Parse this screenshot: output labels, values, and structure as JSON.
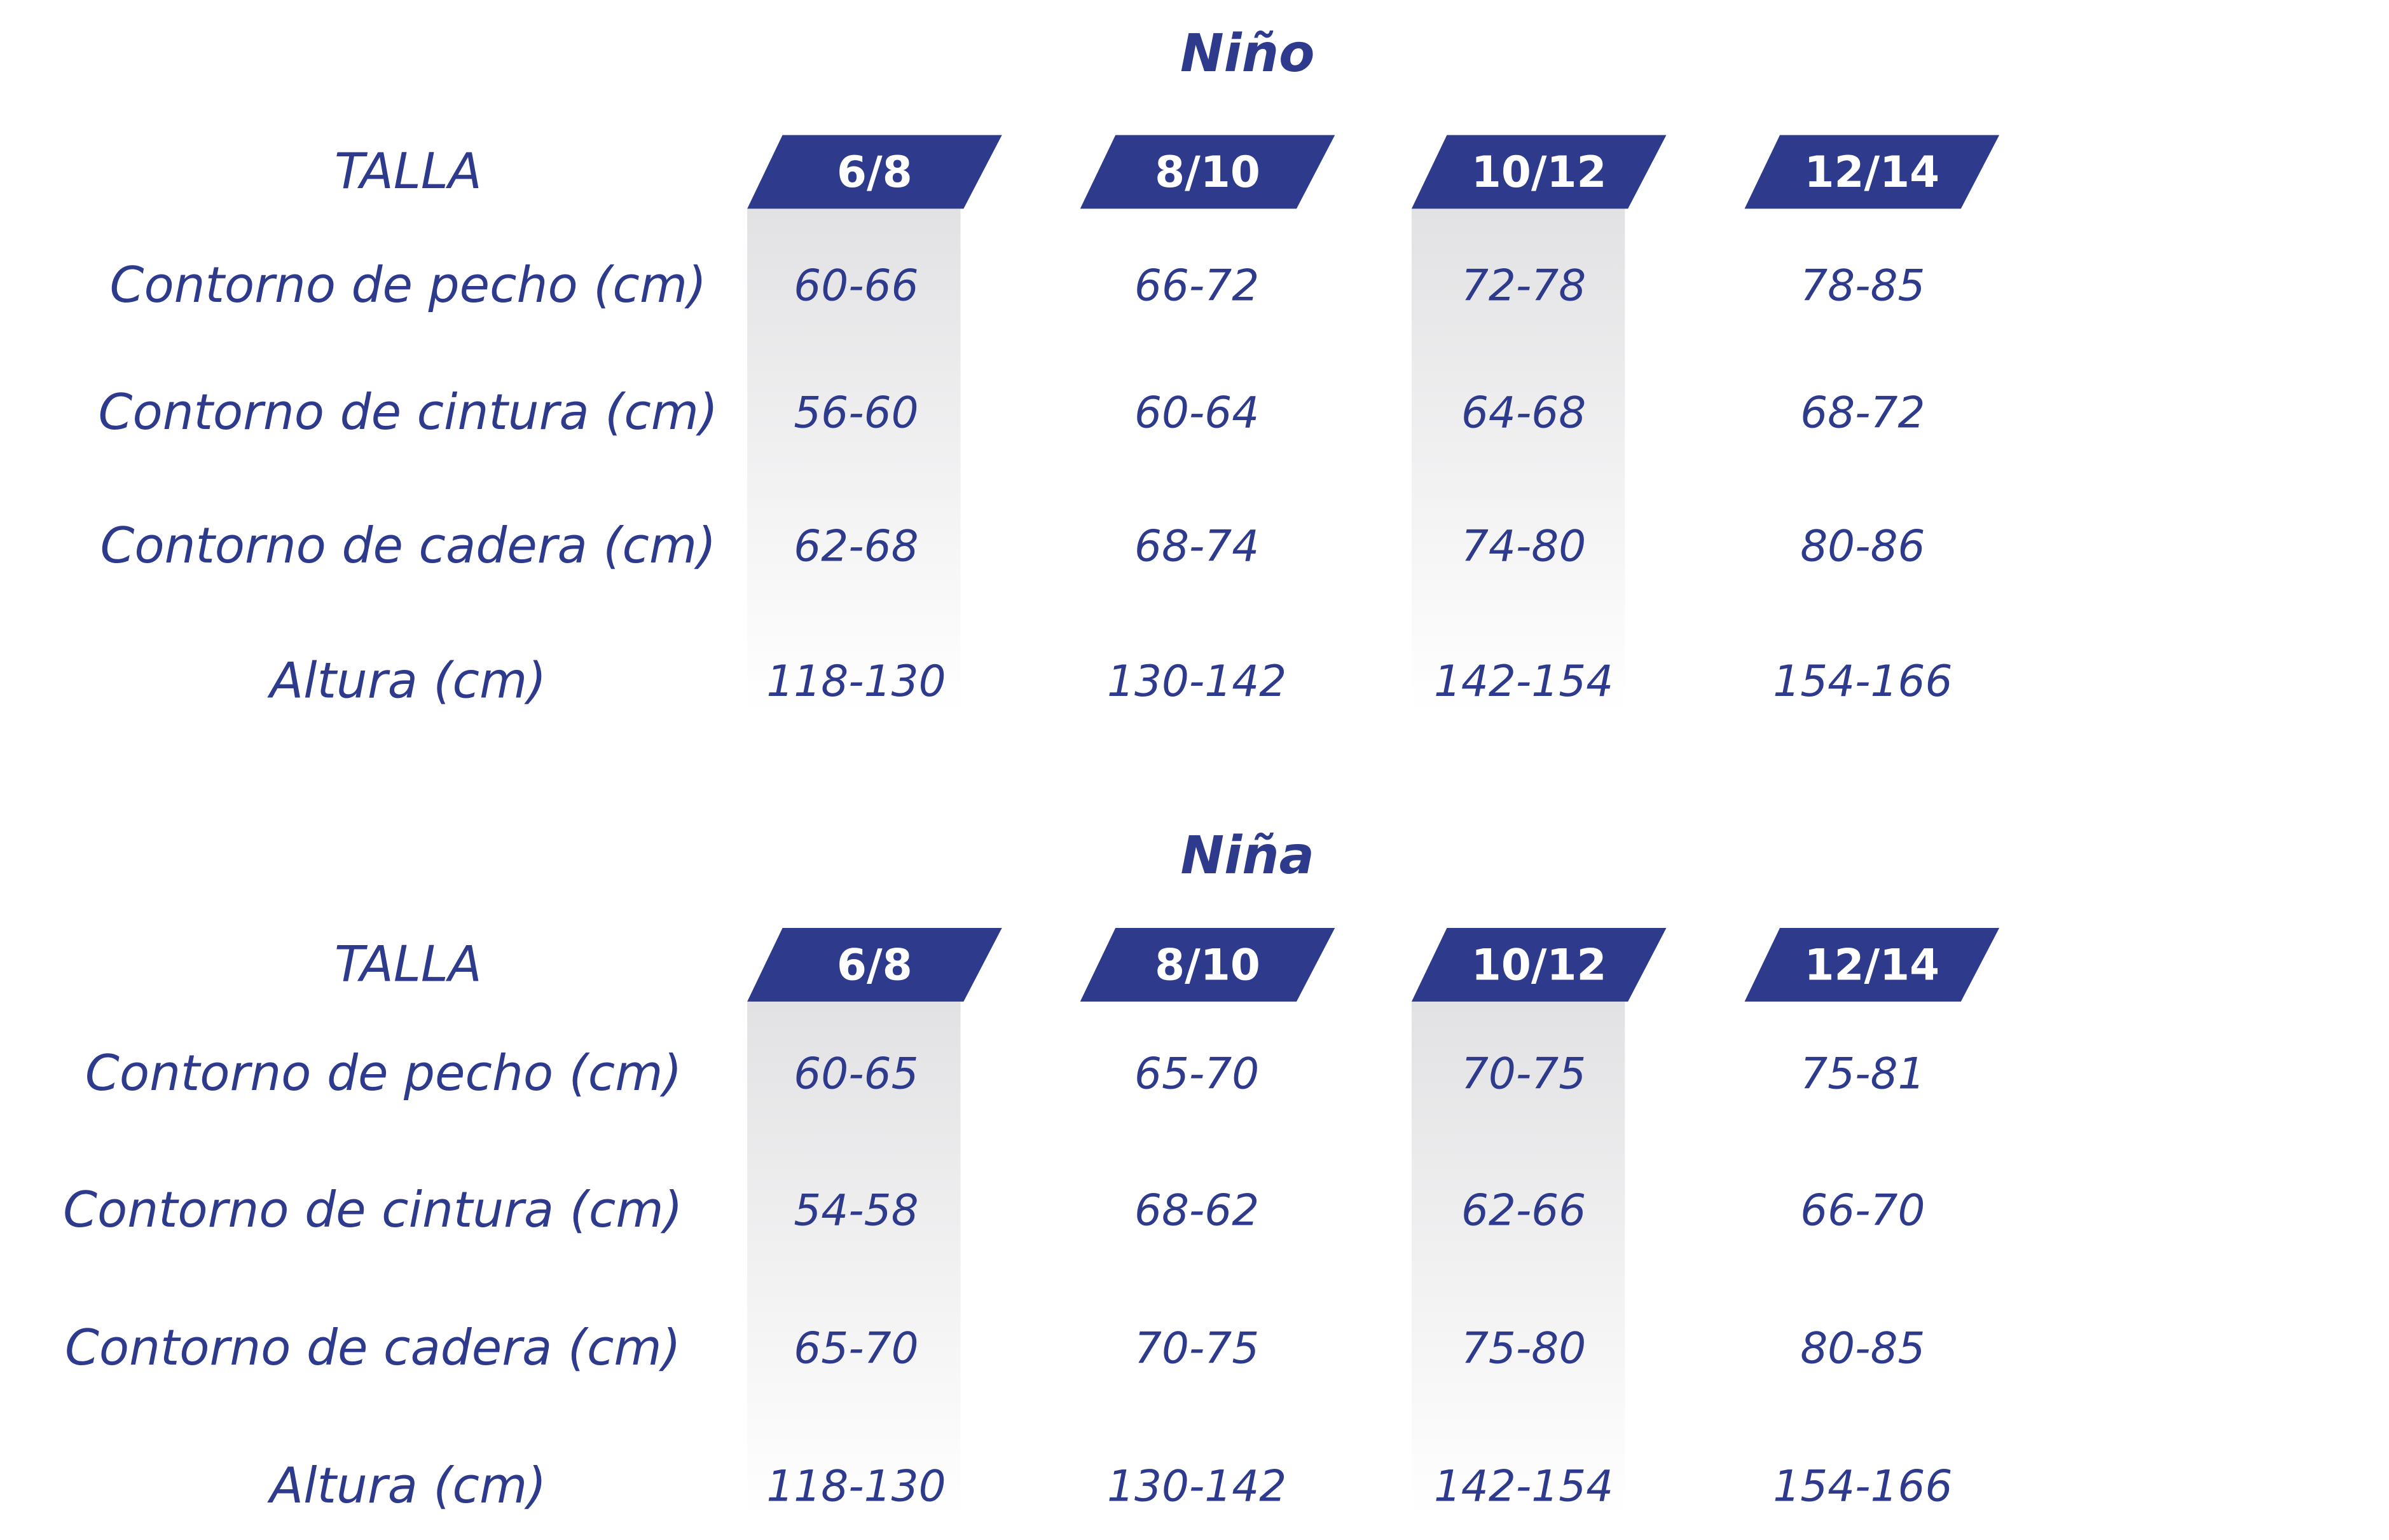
{
  "tables": [
    {
      "title": "Niño",
      "header_label": "TALLA",
      "sizes": [
        "6/8",
        "8/10",
        "10/12",
        "12/14"
      ],
      "rows": [
        {
          "label": "Contorno de pecho (cm)",
          "values": [
            "60-66",
            "66-72",
            "72-78",
            "78-85"
          ]
        },
        {
          "label": "Contorno de cintura (cm)",
          "values": [
            "56-60",
            "60-64",
            "64-68",
            "68-72"
          ]
        },
        {
          "label": "Contorno de cadera (cm)",
          "values": [
            "62-68",
            "68-74",
            "74-80",
            "80-86"
          ]
        },
        {
          "label": "Altura (cm)",
          "values": [
            "118-130",
            "130-142",
            "142-154",
            "154-166"
          ]
        }
      ]
    },
    {
      "title": "Niña",
      "header_label": "TALLA",
      "sizes": [
        "6/8",
        "8/10",
        "10/12",
        "12/14"
      ],
      "rows": [
        {
          "label": "Contorno de pecho (cm)",
          "values": [
            "60-65",
            "65-70",
            "70-75",
            "75-81"
          ]
        },
        {
          "label": "Contorno de cintura (cm)",
          "values": [
            "54-58",
            "68-62",
            "62-66",
            "66-70"
          ]
        },
        {
          "label": "Contorno de cadera (cm)",
          "values": [
            "65-70",
            "70-75",
            "75-80",
            "80-85"
          ]
        },
        {
          "label": "Altura (cm)",
          "values": [
            "118-130",
            "130-142",
            "142-154",
            "154-166"
          ]
        }
      ]
    }
  ]
}
